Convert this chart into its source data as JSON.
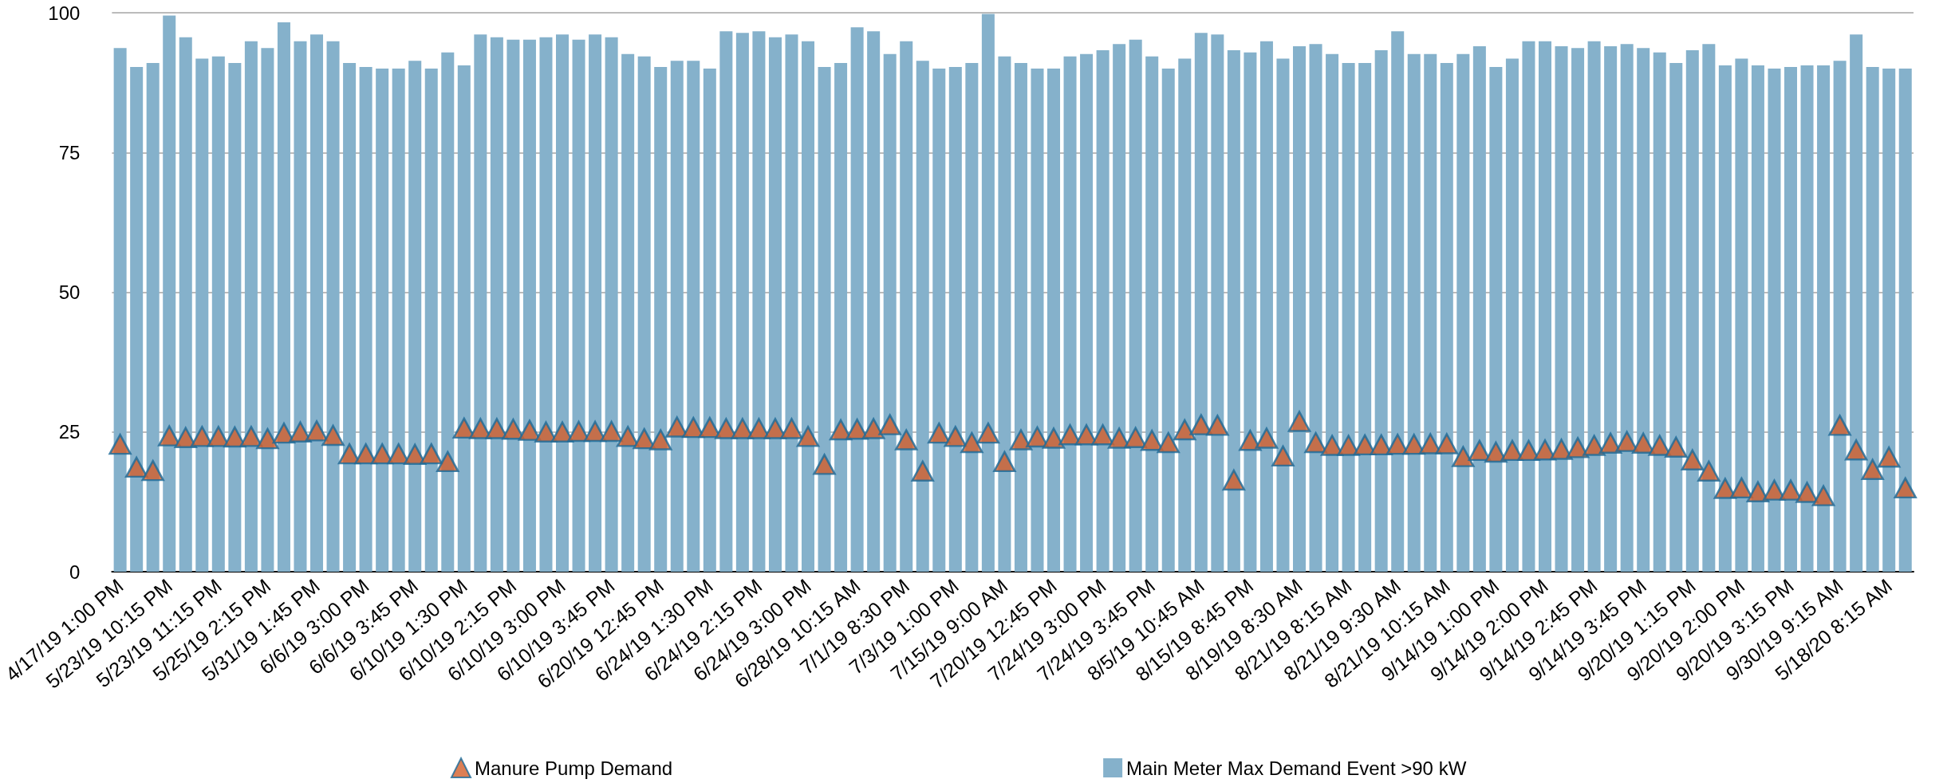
{
  "chart_data": {
    "type": "bar",
    "categories": [
      "4/17/19 1:00 PM",
      null,
      null,
      "5/23/19 10:15 PM",
      null,
      null,
      "5/23/19 11:15 PM",
      null,
      null,
      "5/25/19 2:15 PM",
      null,
      null,
      "5/31/19 1:45 PM",
      null,
      null,
      "6/6/19 3:00 PM",
      null,
      null,
      "6/6/19 3:45 PM",
      null,
      null,
      "6/10/19 1:30 PM",
      null,
      null,
      "6/10/19 2:15 PM",
      null,
      null,
      "6/10/19 3:00 PM",
      null,
      null,
      "6/10/19 3:45 PM",
      null,
      null,
      "6/20/19 12:45 PM",
      null,
      null,
      "6/24/19 1:30 PM",
      null,
      null,
      "6/24/19 2:15 PM",
      null,
      null,
      "6/24/19 3:00 PM",
      null,
      null,
      "6/28/19 10:15 AM",
      null,
      null,
      "7/1/19 8:30 PM",
      null,
      null,
      "7/3/19 1:00 PM",
      null,
      null,
      "7/15/19 9:00 AM",
      null,
      null,
      "7/20/19 12:45 PM",
      null,
      null,
      "7/24/19 3:00 PM",
      null,
      null,
      "7/24/19 3:45 PM",
      null,
      null,
      "8/5/19 10:45 AM",
      null,
      null,
      "8/15/19 8:45 PM",
      null,
      null,
      "8/19/19 8:30 AM",
      null,
      null,
      "8/21/19 8:15 AM",
      null,
      null,
      "8/21/19 9:30 AM",
      null,
      null,
      "8/21/19 10:15 AM",
      null,
      null,
      "9/14/19 1:00 PM",
      null,
      null,
      "9/14/19 2:00 PM",
      null,
      null,
      "9/14/19 2:45 PM",
      null,
      null,
      "9/14/19 3:45 PM",
      null,
      null,
      "9/20/19 1:15 PM",
      null,
      null,
      "9/20/19 2:00 PM",
      null,
      null,
      "9/20/19 3:15 PM",
      null,
      null,
      "9/30/19 9:15 AM",
      null,
      null,
      "5/18/20 8:15 AM",
      null
    ],
    "series": [
      {
        "name": "Manure Pump Demand",
        "type": "scatter",
        "color": "#d35f2a",
        "values": [
          22.8,
          18.7,
          18.1,
          24.3,
          24.0,
          24.2,
          24.2,
          24.1,
          24.2,
          23.8,
          24.8,
          25.0,
          25.2,
          24.4,
          21.1,
          21.1,
          21.1,
          21.1,
          21.0,
          21.1,
          19.7,
          25.7,
          25.6,
          25.6,
          25.5,
          25.3,
          25.0,
          25.0,
          25.1,
          25.1,
          25.1,
          24.2,
          23.8,
          23.6,
          25.9,
          25.8,
          25.8,
          25.6,
          25.6,
          25.6,
          25.6,
          25.6,
          24.2,
          19.2,
          25.4,
          25.5,
          25.6,
          26.3,
          23.6,
          18.0,
          24.8,
          24.2,
          23.1,
          24.8,
          19.7,
          23.6,
          24.1,
          23.9,
          24.5,
          24.5,
          24.5,
          23.9,
          24.0,
          23.5,
          23.1,
          25.4,
          26.3,
          26.2,
          16.4,
          23.5,
          23.9,
          20.7,
          26.9,
          23.1,
          22.6,
          22.6,
          22.7,
          22.7,
          22.8,
          22.8,
          22.9,
          22.9,
          20.6,
          21.7,
          21.4,
          21.7,
          21.7,
          21.8,
          21.9,
          22.2,
          22.6,
          23.0,
          23.3,
          23.0,
          22.6,
          22.3,
          20.0,
          18.0,
          14.9,
          15.0,
          14.3,
          14.6,
          14.6,
          14.2,
          13.6,
          26.2,
          21.8,
          18.3,
          20.5,
          15.0
        ]
      },
      {
        "name": "Main Meter Max Demand Event >90 kW",
        "type": "bar",
        "color": "#85b1cb",
        "values": [
          93.7,
          90.3,
          91.0,
          99.5,
          95.6,
          91.8,
          92.2,
          91.0,
          94.9,
          93.7,
          98.3,
          94.9,
          96.1,
          94.9,
          91.0,
          90.3,
          90,
          90,
          91.4,
          90,
          92.9,
          90.6,
          96.1,
          95.6,
          95.2,
          95.2,
          95.6,
          96.1,
          95.2,
          96.1,
          95.6,
          92.6,
          92.2,
          90.3,
          91.4,
          91.4,
          90,
          96.7,
          96.4,
          96.7,
          95.6,
          96.1,
          94.9,
          90.3,
          91.0,
          97.4,
          96.7,
          92.6,
          94.9,
          91.4,
          90,
          90.3,
          91.0,
          99.8,
          92.2,
          91.0,
          90,
          90,
          92.2,
          92.6,
          93.3,
          94.4,
          95.2,
          92.2,
          90,
          91.8,
          96.4,
          96.1,
          93.3,
          92.9,
          94.9,
          91.8,
          94.0,
          94.4,
          92.6,
          91.0,
          91.0,
          93.3,
          96.7,
          92.6,
          92.6,
          91.0,
          92.6,
          94.0,
          90.3,
          91.8,
          94.9,
          94.9,
          94.0,
          93.7,
          94.9,
          94.0,
          94.4,
          93.7,
          92.9,
          91.0,
          93.3,
          94.4,
          90.6,
          91.8,
          90.6,
          90,
          90.3,
          90.6,
          90.6,
          91.4,
          96.1,
          90.3,
          90,
          90
        ]
      }
    ],
    "ylim": [
      0,
      100
    ],
    "yticks": [
      0,
      25,
      50,
      75,
      100
    ],
    "grid": "y",
    "legend": "bottom",
    "marker": "triangle"
  }
}
